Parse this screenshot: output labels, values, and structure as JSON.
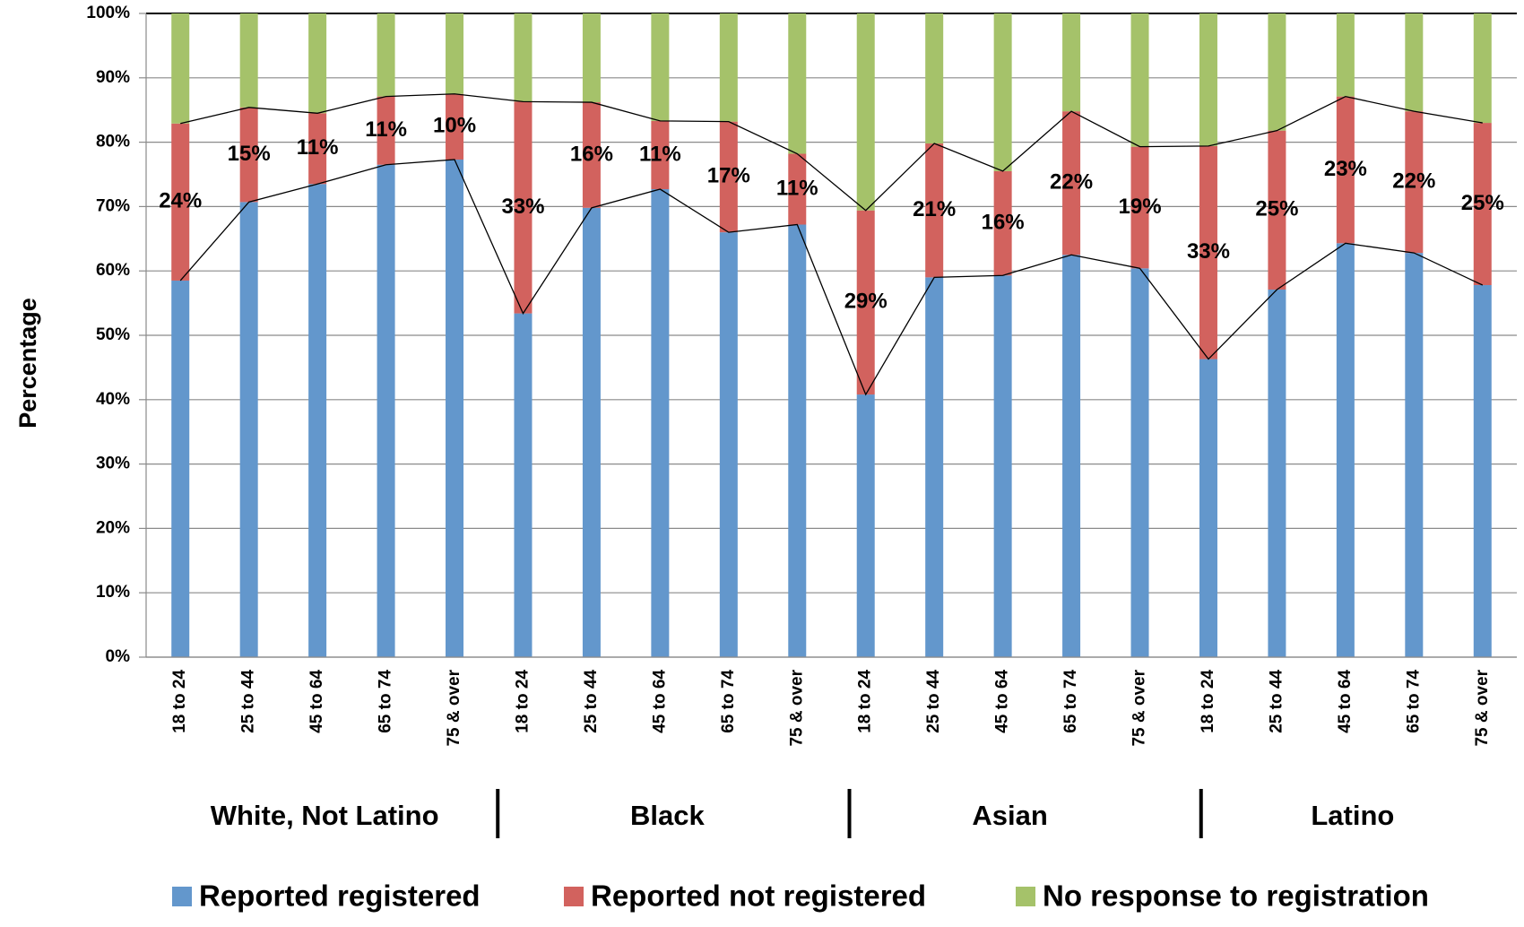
{
  "chart_data": {
    "type": "stacked_bar",
    "y_label": "Percentage",
    "categories": [
      "18 to 24",
      "25 to 44",
      "45 to 64",
      "65 to 74",
      "75 & over",
      "18 to 24",
      "25 to 44",
      "45 to 64",
      "65 to 74",
      "75 & over",
      "18 to 24",
      "25 to 44",
      "45 to 64",
      "65 to 74",
      "75 & over",
      "18 to 24",
      "25 to 44",
      "45 to 64",
      "65 to 74",
      "75 & over"
    ],
    "groups": [
      "White, Not Latino",
      "Black",
      "Asian",
      "Latino"
    ],
    "series": [
      {
        "name": "Reported registered",
        "color": "#6397cc",
        "values": [
          58.5,
          70.7,
          73.5,
          76.5,
          77.3,
          53.4,
          69.8,
          72.7,
          66.0,
          67.2,
          40.8,
          59.0,
          59.3,
          62.5,
          60.4,
          46.3,
          57.1,
          64.3,
          62.8,
          57.8
        ]
      },
      {
        "name": "Reported not registered",
        "color": "#d2625e",
        "values": [
          24.4,
          14.7,
          11.0,
          10.6,
          10.2,
          32.9,
          16.4,
          10.6,
          17.2,
          11.0,
          28.6,
          20.8,
          16.2,
          22.3,
          18.9,
          33.1,
          24.7,
          22.8,
          22.0,
          25.2
        ],
        "value_labels": [
          "24%",
          "15%",
          "11%",
          "11%",
          "10%",
          "33%",
          "16%",
          "11%",
          "17%",
          "11%",
          "29%",
          "21%",
          "16%",
          "22%",
          "19%",
          "33%",
          "25%",
          "23%",
          "22%",
          "25%"
        ]
      },
      {
        "name": "No response to registration",
        "color": "#a5c26a",
        "values": [
          17.1,
          14.6,
          15.5,
          12.9,
          12.5,
          13.7,
          13.8,
          16.7,
          16.8,
          21.8,
          30.6,
          20.2,
          24.5,
          15.2,
          20.7,
          20.6,
          18.2,
          12.9,
          15.2,
          17.0
        ]
      }
    ],
    "ylim": [
      0,
      100
    ],
    "yticks": [
      {
        "value": 0,
        "label": "0%"
      },
      {
        "value": 10,
        "label": "10%"
      },
      {
        "value": 20,
        "label": "20%"
      },
      {
        "value": 30,
        "label": "30%"
      },
      {
        "value": 40,
        "label": "40%"
      },
      {
        "value": 50,
        "label": "50%"
      },
      {
        "value": 60,
        "label": "60%"
      },
      {
        "value": 70,
        "label": "70%"
      },
      {
        "value": 80,
        "label": "80%"
      },
      {
        "value": 90,
        "label": "90%"
      },
      {
        "value": 100,
        "label": "100%"
      }
    ],
    "grid": true,
    "legend": "bottom"
  }
}
